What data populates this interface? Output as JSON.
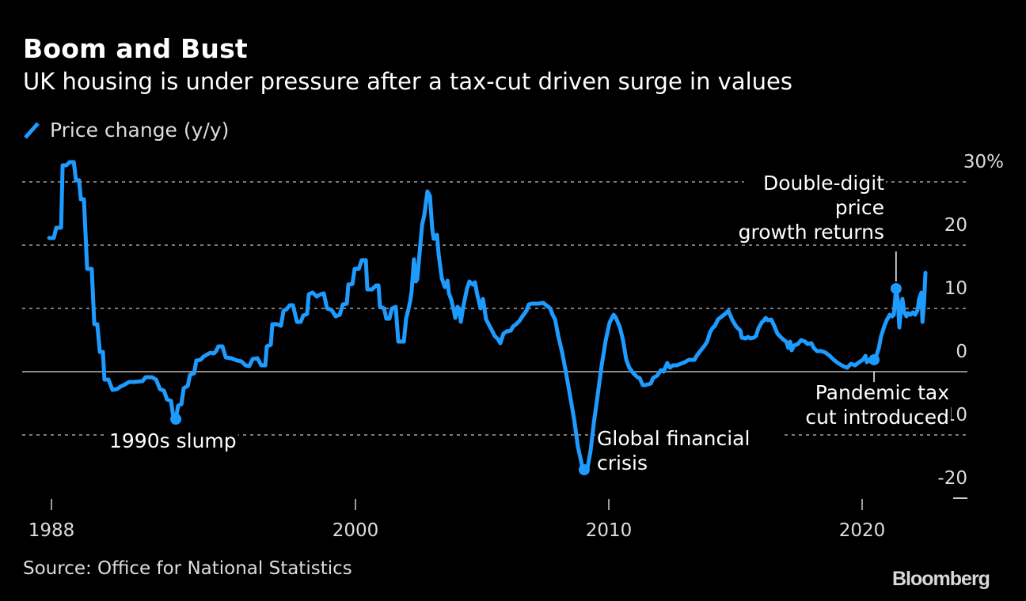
{
  "header": {
    "title": "Boom and Bust",
    "subtitle": "UK housing is under pressure after a tax-cut driven surge in values"
  },
  "legend": {
    "label": "Price change (y/y)",
    "color": "#1e9bff"
  },
  "footer": {
    "source": "Source: Office for National Statistics",
    "brand": "Bloomberg"
  },
  "colors": {
    "background": "#000000",
    "line": "#1e9bff",
    "grid": "#7a7a7a",
    "zero_line": "#8a8a8a",
    "text": "#ffffff"
  },
  "chart_data": {
    "type": "line",
    "title": "Boom and Bust",
    "subtitle": "UK housing is under pressure after a tax-cut driven surge in values",
    "xlabel": "",
    "ylabel": "",
    "xlim": [
      1988,
      2022.5
    ],
    "ylim": [
      -20,
      30
    ],
    "grid": true,
    "legend_position": "top-left",
    "x_ticks": [
      1988,
      2000,
      2010,
      2020
    ],
    "x_tick_labels": [
      "1988",
      "2000",
      "2010",
      "2020"
    ],
    "y_ticks": [
      30,
      20,
      10,
      0,
      -10,
      -20
    ],
    "y_tick_labels": [
      "30%",
      "20",
      "10",
      "0",
      "-10",
      "-20"
    ],
    "series": [
      {
        "name": "Price change (y/y)",
        "x": [
          1987.91,
          1988.09,
          1988.19,
          1988.38,
          1988.44,
          1988.59,
          1988.72,
          1988.88,
          1988.97,
          1989.09,
          1989.16,
          1989.28,
          1989.41,
          1989.59,
          1989.69,
          1989.81,
          1989.91,
          1990.03,
          1990.09,
          1990.25,
          1990.41,
          1990.59,
          1990.72,
          1990.91,
          1991.06,
          1991.28,
          1991.59,
          1991.72,
          1991.97,
          1992.13,
          1992.28,
          1992.44,
          1992.56,
          1992.72,
          1992.81,
          1992.91,
          1993.0,
          1993.13,
          1993.22,
          1993.38,
          1993.47,
          1993.63,
          1993.72,
          1993.88,
          1994.0,
          1994.16,
          1994.28,
          1994.41,
          1994.5,
          1994.59,
          1994.75,
          1994.88,
          1995.09,
          1995.34,
          1995.5,
          1995.66,
          1995.81,
          1995.94,
          1996.13,
          1996.28,
          1996.44,
          1996.5,
          1996.66,
          1996.72,
          1996.91,
          1997.06,
          1997.16,
          1997.28,
          1997.41,
          1997.53,
          1997.69,
          1997.84,
          1997.94,
          1998.09,
          1998.16,
          1998.31,
          1998.47,
          1998.63,
          1998.75,
          1998.88,
          1999.06,
          1999.22,
          1999.38,
          1999.5,
          1999.66,
          1999.72,
          1999.88,
          1999.97,
          2000.13,
          2000.25,
          2000.41,
          2000.47,
          2000.66,
          2000.81,
          2000.91,
          2000.97,
          2001.13,
          2001.22,
          2001.34,
          2001.44,
          2001.59,
          2001.69,
          2001.91,
          2002.0,
          2002.09,
          2002.16,
          2002.22,
          2002.31,
          2002.38,
          2002.44,
          2002.63,
          2002.72,
          2002.84,
          2002.94,
          2003.03,
          2003.09,
          2003.22,
          2003.28,
          2003.41,
          2003.53,
          2003.63,
          2003.69,
          2003.78,
          2003.88,
          2003.94,
          2004.03,
          2004.09,
          2004.16,
          2004.25,
          2004.41,
          2004.5,
          2004.63,
          2004.72,
          2004.81,
          2004.94,
          2005.03,
          2005.16,
          2005.34,
          2005.5,
          2005.63,
          2005.72,
          2005.84,
          2005.97,
          2006.13,
          2006.22,
          2006.34,
          2006.47,
          2006.59,
          2006.75,
          2006.84,
          2006.97,
          2007.22,
          2007.41,
          2007.53,
          2007.69,
          2007.78,
          2007.88,
          2008.0,
          2008.16,
          2008.28,
          2008.47,
          2008.63,
          2008.78,
          2008.94,
          2009.03,
          2009.16,
          2009.28,
          2009.41,
          2009.56,
          2009.72,
          2009.88,
          2010.03,
          2010.19,
          2010.28,
          2010.44,
          2010.56,
          2010.69,
          2010.81,
          2010.97,
          2011.13,
          2011.22,
          2011.34,
          2011.44,
          2011.66,
          2011.75,
          2011.91,
          2012.06,
          2012.16,
          2012.31,
          2012.41,
          2012.53,
          2012.69,
          2012.84,
          2013.0,
          2013.16,
          2013.38,
          2013.47,
          2013.63,
          2013.78,
          2013.88,
          2014.0,
          2014.09,
          2014.19,
          2014.31,
          2014.47,
          2014.59,
          2014.72,
          2014.88,
          2015.03,
          2015.19,
          2015.25,
          2015.41,
          2015.5,
          2015.59,
          2015.72,
          2015.81,
          2015.91,
          2016.03,
          2016.13,
          2016.19,
          2016.28,
          2016.41,
          2016.53,
          2016.66,
          2016.84,
          2017.0,
          2017.09,
          2017.16,
          2017.22,
          2017.31,
          2017.47,
          2017.59,
          2017.75,
          2017.84,
          2018.0,
          2018.09,
          2018.22,
          2018.41,
          2018.56,
          2018.72,
          2018.88,
          2019.0,
          2019.09,
          2019.25,
          2019.41,
          2019.56,
          2019.72,
          2019.88,
          2020.03,
          2020.13,
          2020.19,
          2020.28,
          2020.34,
          2020.47,
          2020.56,
          2020.66,
          2020.75,
          2020.88,
          2020.97,
          2021.09,
          2021.19,
          2021.25,
          2021.34,
          2021.41,
          2021.47,
          2021.53,
          2021.59,
          2021.66,
          2021.75,
          2021.81,
          2021.91,
          2022.0,
          2022.09,
          2022.19,
          2022.25,
          2022.34,
          2022.38,
          2022.44,
          2022.5
        ],
        "values": [
          21.13,
          21.13,
          22.75,
          22.75,
          32.63,
          32.63,
          33.13,
          33.13,
          30.25,
          30.25,
          27.25,
          27.25,
          16.25,
          16.25,
          7.5,
          7.5,
          3.13,
          3.13,
          -1.25,
          -1.25,
          -2.88,
          -2.75,
          -2.38,
          -2.0,
          -1.63,
          -1.63,
          -1.5,
          -0.88,
          -0.88,
          -1.25,
          -2.75,
          -3.0,
          -4.38,
          -4.63,
          -7.13,
          -7.5,
          -5.38,
          -5.13,
          -2.63,
          -2.25,
          -0.5,
          -0.25,
          1.75,
          1.88,
          2.38,
          2.75,
          3.0,
          2.88,
          3.25,
          4.0,
          4.0,
          2.25,
          2.13,
          1.75,
          1.63,
          1.0,
          0.88,
          2.0,
          2.13,
          1.0,
          1.0,
          4.0,
          4.25,
          7.5,
          7.5,
          7.25,
          9.63,
          9.88,
          10.5,
          10.5,
          7.88,
          7.88,
          8.88,
          9.13,
          12.25,
          12.5,
          11.88,
          12.25,
          12.38,
          10.0,
          9.75,
          8.75,
          9.0,
          10.63,
          10.75,
          13.75,
          13.88,
          16.25,
          16.25,
          17.63,
          17.63,
          13.0,
          13.0,
          13.63,
          13.63,
          10.25,
          10.0,
          8.38,
          8.38,
          10.0,
          10.25,
          4.75,
          4.75,
          8.38,
          9.88,
          11.13,
          12.75,
          17.75,
          14.25,
          14.63,
          23.25,
          24.75,
          28.5,
          27.75,
          22.5,
          21.0,
          21.63,
          18.63,
          14.75,
          13.38,
          14.38,
          12.38,
          11.38,
          9.75,
          8.5,
          10.25,
          10.0,
          7.88,
          10.13,
          13.25,
          14.25,
          13.75,
          14.13,
          12.13,
          10.0,
          11.5,
          8.25,
          6.88,
          5.63,
          5.13,
          4.5,
          6.0,
          6.38,
          6.5,
          7.13,
          7.5,
          8.0,
          8.75,
          9.63,
          10.63,
          10.75,
          10.75,
          10.88,
          10.5,
          10.0,
          9.0,
          8.25,
          5.75,
          3.0,
          0.5,
          -3.75,
          -7.5,
          -11.88,
          -14.75,
          -15.5,
          -15.25,
          -12.5,
          -8.13,
          -3.75,
          1.0,
          5.0,
          7.75,
          9.0,
          8.5,
          7.0,
          5.0,
          1.88,
          0.63,
          -0.25,
          -0.88,
          -1.0,
          -2.13,
          -2.13,
          -1.88,
          -1.0,
          -0.63,
          0.25,
          0.0,
          1.38,
          0.63,
          1.0,
          1.0,
          1.25,
          1.5,
          1.88,
          1.88,
          2.5,
          3.38,
          4.13,
          4.75,
          6.25,
          6.88,
          7.25,
          8.25,
          8.75,
          9.13,
          9.63,
          8.13,
          7.13,
          6.5,
          5.38,
          5.25,
          5.5,
          5.25,
          5.38,
          5.63,
          6.88,
          7.75,
          8.13,
          8.5,
          8.13,
          8.25,
          7.25,
          6.0,
          5.25,
          4.75,
          3.75,
          4.75,
          3.38,
          4.13,
          4.38,
          5.0,
          4.75,
          4.38,
          4.5,
          3.75,
          3.25,
          3.25,
          3.0,
          2.5,
          1.88,
          1.5,
          1.25,
          0.88,
          0.63,
          1.25,
          1.0,
          1.5,
          1.88,
          2.5,
          1.5,
          1.88,
          1.63,
          1.88,
          2.5,
          3.75,
          5.63,
          7.25,
          8.13,
          9.0,
          8.75,
          9.0,
          13.13,
          11.25,
          7.0,
          10.0,
          11.5,
          9.38,
          8.75,
          9.25,
          9.0,
          9.38,
          9.0,
          9.75,
          11.5,
          12.5,
          7.88,
          10.63,
          15.63
        ]
      }
    ],
    "annotations": [
      {
        "id": "slump",
        "lines": [
          "1990s slump"
        ],
        "point": {
          "x": 1992.91,
          "y": -7.5
        },
        "align": "start",
        "leader": false
      },
      {
        "id": "gfc",
        "lines": [
          "Global financial",
          "crisis"
        ],
        "point": {
          "x": 2009.03,
          "y": -15.5
        },
        "align": "start",
        "leader": false
      },
      {
        "id": "pandemic",
        "lines": [
          "Pandemic tax",
          "cut introduced"
        ],
        "point": {
          "x": 2020.47,
          "y": 1.88
        },
        "align": "end",
        "leader": true
      },
      {
        "id": "double",
        "lines": [
          "Double-digit",
          "price",
          "growth returns"
        ],
        "point": {
          "x": 2021.34,
          "y": 13.13
        },
        "align": "end",
        "leader": true
      }
    ]
  }
}
